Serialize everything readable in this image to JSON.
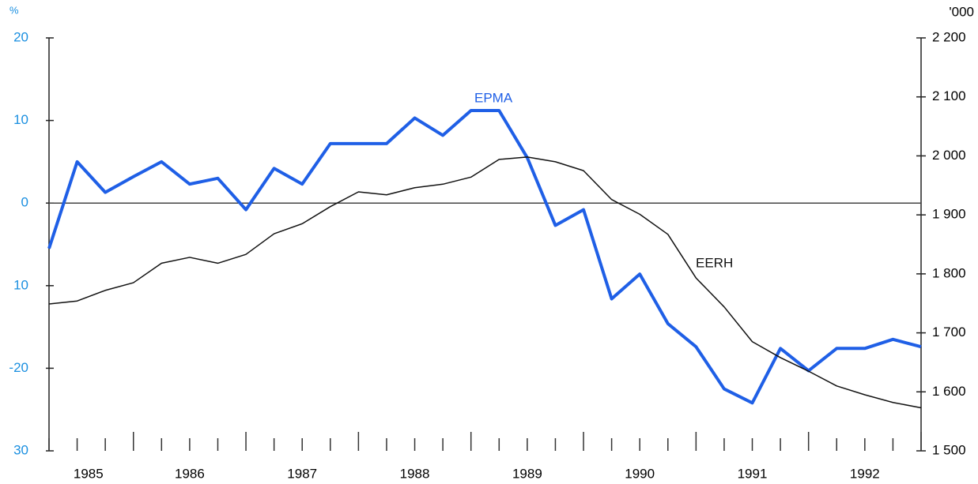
{
  "chart_data": {
    "type": "line",
    "y_unit": "%",
    "y2_unit": "'000",
    "x": [
      1985.25,
      1985.5,
      1985.75,
      1986.0,
      1986.25,
      1986.5,
      1986.75,
      1987.0,
      1987.25,
      1987.5,
      1987.75,
      1988.0,
      1988.25,
      1988.5,
      1988.75,
      1989.0,
      1989.25,
      1989.5,
      1989.75,
      1990.0,
      1990.25,
      1990.5,
      1990.75,
      1991.0,
      1991.25,
      1991.5,
      1991.75,
      1992.0,
      1992.25,
      1992.5,
      1992.75,
      1993.0
    ],
    "series": [
      {
        "name": "EPMA",
        "color": "#1f5fe6",
        "axis": "y",
        "values": [
          -5.5,
          5,
          1.3,
          3.2,
          5,
          2.3,
          3,
          -0.8,
          4.2,
          2.3,
          7.2,
          7.2,
          7.2,
          10.3,
          8.2,
          11.2,
          11.2,
          5.5,
          -2.7,
          -0.8,
          -11.6,
          -8.6,
          -14.6,
          -17.4,
          -22.5,
          -24.2,
          -17.6,
          -20.3,
          -17.6,
          -17.6,
          -16.5,
          -17.4
        ]
      },
      {
        "name": "EERH",
        "color": "#111111",
        "axis": "y2",
        "values": [
          1749,
          1754,
          1772,
          1785,
          1818,
          1828,
          1818,
          1833,
          1868,
          1885,
          1914,
          1939,
          1934,
          1946,
          1952,
          1964,
          1994,
          1998,
          1990,
          1975,
          1926,
          1901,
          1867,
          1793,
          1744,
          1685,
          1658,
          1635,
          1610,
          1595,
          1582,
          1573
        ]
      }
    ],
    "xlim": [
      1985.25,
      1993.0
    ],
    "xticks": [
      {
        "value": 1985.6,
        "label": "1985"
      },
      {
        "value": 1986.5,
        "label": "1986"
      },
      {
        "value": 1987.5,
        "label": "1987"
      },
      {
        "value": 1988.5,
        "label": "1988"
      },
      {
        "value": 1989.5,
        "label": "1989"
      },
      {
        "value": 1990.5,
        "label": "1990"
      },
      {
        "value": 1991.5,
        "label": "1991"
      },
      {
        "value": 1992.5,
        "label": "1992"
      }
    ],
    "ylim": [
      -30,
      20
    ],
    "yticks": [
      20,
      10,
      0,
      {
        "value": -10,
        "label": "10"
      },
      -20,
      {
        "value": -30,
        "label": "30"
      }
    ],
    "y2lim": [
      1500,
      2200
    ],
    "y2ticks": [
      {
        "value": 2200,
        "label": "2 200"
      },
      {
        "value": 2100,
        "label": "2 100"
      },
      {
        "value": 2000,
        "label": "2 000"
      },
      {
        "value": 1900,
        "label": "1 900"
      },
      {
        "value": 1800,
        "label": "1 800"
      },
      {
        "value": 1700,
        "label": "1 700"
      },
      {
        "value": 1600,
        "label": "1 600"
      },
      {
        "value": 1500,
        "label": "1 500"
      }
    ]
  }
}
